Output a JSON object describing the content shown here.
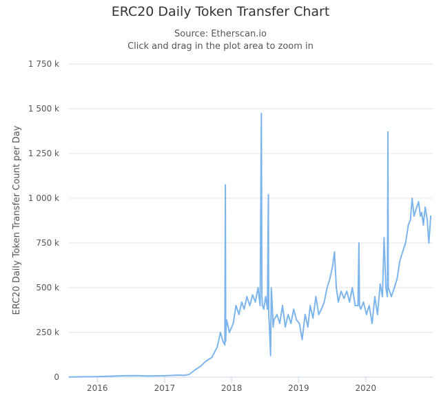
{
  "chart_data": {
    "type": "line",
    "title": "ERC20 Daily Token Transfer Chart",
    "subtitle": "Source: Etherscan.io",
    "subtitle2": "Click and drag in the plot area to zoom in",
    "xlabel": "",
    "ylabel": "ERC20 Daily Token Transfer Count per Day",
    "ylim": [
      0,
      1750000
    ],
    "yticks": [
      0,
      250000,
      500000,
      750000,
      1000000,
      1250000,
      1500000,
      1750000
    ],
    "ytick_labels": [
      "0",
      "250 k",
      "500 k",
      "750 k",
      "1 000 k",
      "1 250 k",
      "1 500 k",
      "1 750 k"
    ],
    "xlim": [
      "2015-07-30",
      "2020-12-31"
    ],
    "xtick_labels": [
      "2016",
      "2017",
      "2018",
      "2019",
      "2020"
    ],
    "grid": true,
    "legend": false,
    "color": "#7cb5ec",
    "series": [
      {
        "x": [
          "2015-08-01",
          "2015-10-01",
          "2016-01-01",
          "2016-04-01",
          "2016-06-01",
          "2016-08-01",
          "2016-10-01",
          "2017-01-01",
          "2017-02-15",
          "2017-03-15",
          "2017-04-15",
          "2017-05-15",
          "2017-06-15",
          "2017-07-15",
          "2017-08-15",
          "2017-09-15",
          "2017-10-15",
          "2017-11-01",
          "2017-11-15",
          "2017-11-25",
          "2017-11-28",
          "2017-11-30",
          "2017-12-01",
          "2017-12-05",
          "2017-12-20",
          "2018-01-10",
          "2018-01-25",
          "2018-02-10",
          "2018-02-25",
          "2018-03-10",
          "2018-03-25",
          "2018-04-10",
          "2018-04-25",
          "2018-05-10",
          "2018-05-25",
          "2018-06-05",
          "2018-06-12",
          "2018-06-15",
          "2018-06-18",
          "2018-06-25",
          "2018-07-05",
          "2018-07-15",
          "2018-07-20",
          "2018-07-22",
          "2018-07-25",
          "2018-08-01",
          "2018-08-05",
          "2018-08-10",
          "2018-08-15",
          "2018-08-20",
          "2018-09-05",
          "2018-09-20",
          "2018-10-05",
          "2018-10-20",
          "2018-11-05",
          "2018-11-20",
          "2018-12-05",
          "2018-12-20",
          "2019-01-05",
          "2019-01-20",
          "2019-02-05",
          "2019-02-20",
          "2019-03-05",
          "2019-03-20",
          "2019-04-05",
          "2019-04-20",
          "2019-05-05",
          "2019-05-20",
          "2019-06-05",
          "2019-06-20",
          "2019-07-05",
          "2019-07-15",
          "2019-07-25",
          "2019-08-05",
          "2019-08-20",
          "2019-09-05",
          "2019-09-20",
          "2019-10-05",
          "2019-10-20",
          "2019-11-05",
          "2019-11-20",
          "2019-11-25",
          "2019-11-28",
          "2019-12-05",
          "2019-12-20",
          "2020-01-05",
          "2020-01-20",
          "2020-02-05",
          "2020-02-20",
          "2020-03-05",
          "2020-03-20",
          "2020-04-01",
          "2020-04-10",
          "2020-04-20",
          "2020-04-28",
          "2020-05-01",
          "2020-05-03",
          "2020-05-10",
          "2020-05-20",
          "2020-06-05",
          "2020-06-20",
          "2020-07-05",
          "2020-07-20",
          "2020-08-05",
          "2020-08-20",
          "2020-09-01",
          "2020-09-10",
          "2020-09-20",
          "2020-10-05",
          "2020-10-15",
          "2020-10-25",
          "2020-11-01",
          "2020-11-10",
          "2020-11-20",
          "2020-12-01",
          "2020-12-10",
          "2020-12-20"
        ],
        "values": [
          1000,
          2000,
          3000,
          6000,
          8000,
          9000,
          7000,
          8000,
          10000,
          12000,
          10000,
          15000,
          40000,
          60000,
          90000,
          110000,
          170000,
          250000,
          200000,
          180000,
          1075000,
          200000,
          260000,
          320000,
          250000,
          300000,
          400000,
          350000,
          420000,
          380000,
          450000,
          400000,
          460000,
          420000,
          500000,
          400000,
          1475000,
          450000,
          400000,
          380000,
          450000,
          380000,
          1020000,
          350000,
          300000,
          120000,
          500000,
          400000,
          280000,
          320000,
          350000,
          300000,
          400000,
          280000,
          350000,
          300000,
          380000,
          320000,
          300000,
          210000,
          350000,
          280000,
          400000,
          330000,
          450000,
          350000,
          380000,
          420000,
          500000,
          550000,
          620000,
          700000,
          500000,
          420000,
          480000,
          440000,
          480000,
          420000,
          500000,
          400000,
          400000,
          750000,
          400000,
          380000,
          420000,
          350000,
          400000,
          300000,
          450000,
          350000,
          520000,
          450000,
          780000,
          500000,
          450000,
          1370000,
          500000,
          480000,
          450000,
          500000,
          550000,
          650000,
          700000,
          750000,
          850000,
          880000,
          1000000,
          900000,
          950000,
          980000,
          900000,
          920000,
          850000,
          950000,
          880000,
          750000,
          900000
        ]
      }
    ]
  }
}
